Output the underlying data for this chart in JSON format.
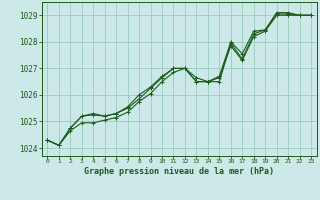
{
  "title": "Graphe pression niveau de la mer (hPa)",
  "bg_color": "#cce8e8",
  "plot_bg_color": "#cce8e8",
  "grid_color": "#99ccbb",
  "line_color": "#1a5c1a",
  "text_color": "#1a5c1a",
  "xlim": [
    -0.5,
    23.5
  ],
  "ylim": [
    1023.7,
    1029.5
  ],
  "yticks": [
    1024,
    1025,
    1026,
    1027,
    1028,
    1029
  ],
  "xticks": [
    0,
    1,
    2,
    3,
    4,
    5,
    6,
    7,
    8,
    9,
    10,
    11,
    12,
    13,
    14,
    15,
    16,
    17,
    18,
    19,
    20,
    21,
    22,
    23
  ],
  "series1": [
    1024.3,
    1024.1,
    1024.65,
    1024.95,
    1024.95,
    1025.05,
    1025.15,
    1025.35,
    1025.75,
    1026.05,
    1026.5,
    1026.85,
    1027.0,
    1026.5,
    1026.5,
    1026.65,
    1027.85,
    1027.3,
    1028.2,
    1028.4,
    1029.0,
    1029.0,
    1029.0,
    1029.0
  ],
  "series2": [
    1024.3,
    1024.1,
    1024.75,
    1025.2,
    1025.25,
    1025.2,
    1025.3,
    1025.5,
    1025.85,
    1026.25,
    1026.65,
    1027.0,
    1027.0,
    1026.65,
    1026.5,
    1026.5,
    1027.95,
    1027.35,
    1028.3,
    1028.45,
    1029.05,
    1029.05,
    1029.0,
    1029.0
  ],
  "series3": [
    1024.3,
    1024.1,
    1024.75,
    1025.2,
    1025.3,
    1025.2,
    1025.3,
    1025.55,
    1026.0,
    1026.3,
    1026.7,
    1027.0,
    1027.0,
    1026.5,
    1026.5,
    1026.7,
    1028.0,
    1027.55,
    1028.4,
    1028.45,
    1029.1,
    1029.1,
    1029.0,
    1029.0
  ]
}
